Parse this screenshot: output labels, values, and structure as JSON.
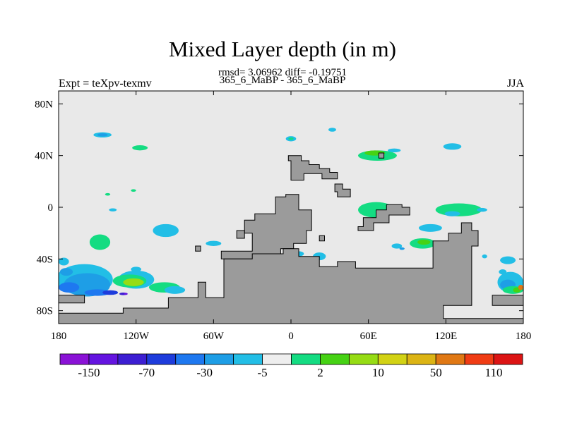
{
  "title": "Mixed Layer depth (in m)",
  "stats": "rmsd= 3.06962 diff= -0.19751",
  "subtitle": "365_6_MaBP - 365_6_MaBP",
  "left_label": "Expt = teXpv-texmv",
  "right_label": "JJA",
  "colors": {
    "ocean_background": "#e9e9e9",
    "land": "#9b9b9b",
    "palette": [
      "#8a12d6",
      "#6414e0",
      "#3c1ed2",
      "#1e3cdc",
      "#1e78f0",
      "#1e9ee6",
      "#22bee6",
      "#eeeeee",
      "#14dc82",
      "#46d214",
      "#96dc14",
      "#d2d214",
      "#dcb414",
      "#e07814",
      "#f03c14",
      "#dc1414"
    ]
  },
  "chart_data": {
    "type": "heatmap",
    "title": "Mixed Layer depth (in m)",
    "xlim": [
      -180,
      180
    ],
    "ylim": [
      -90,
      90
    ],
    "x_ticks": [
      {
        "value": -180,
        "label": "180"
      },
      {
        "value": -120,
        "label": "120W"
      },
      {
        "value": -60,
        "label": "60W"
      },
      {
        "value": 0,
        "label": "0"
      },
      {
        "value": 60,
        "label": "60E"
      },
      {
        "value": 120,
        "label": "120E"
      },
      {
        "value": 180,
        "label": "180"
      }
    ],
    "y_ticks": [
      {
        "value": 80,
        "label": "80N"
      },
      {
        "value": 40,
        "label": "40N"
      },
      {
        "value": 0,
        "label": "0"
      },
      {
        "value": -40,
        "label": "40S"
      },
      {
        "value": -80,
        "label": "80S"
      }
    ],
    "colorbar": {
      "levels": [
        -150,
        -110,
        -70,
        -50,
        -30,
        -10,
        -5,
        -2,
        2,
        5,
        10,
        30,
        50,
        70,
        110,
        150
      ],
      "labels": [
        {
          "after_box": 1,
          "text": "-150"
        },
        {
          "after_box": 3,
          "text": "-70"
        },
        {
          "after_box": 5,
          "text": "-30"
        },
        {
          "after_box": 7,
          "text": "-5"
        },
        {
          "after_box": 9,
          "text": "2"
        },
        {
          "after_box": 11,
          "text": "10"
        },
        {
          "after_box": 13,
          "text": "50"
        },
        {
          "after_box": 15,
          "text": "110"
        }
      ]
    },
    "land": [
      {
        "name": "north-land",
        "points": [
          [
            -2,
            40
          ],
          [
            8,
            40
          ],
          [
            8,
            36
          ],
          [
            14,
            36
          ],
          [
            14,
            33
          ],
          [
            22,
            33
          ],
          [
            22,
            30
          ],
          [
            30,
            30
          ],
          [
            30,
            27
          ],
          [
            36,
            27
          ],
          [
            36,
            22
          ],
          [
            24,
            22
          ],
          [
            24,
            26
          ],
          [
            10,
            26
          ],
          [
            10,
            21
          ],
          [
            0,
            21
          ],
          [
            0,
            36
          ],
          [
            -2,
            36
          ]
        ]
      },
      {
        "name": "central-land",
        "points": [
          [
            -28,
            -5
          ],
          [
            -12,
            -5
          ],
          [
            -12,
            8
          ],
          [
            -4,
            8
          ],
          [
            -4,
            10
          ],
          [
            6,
            10
          ],
          [
            6,
            -2
          ],
          [
            16,
            -2
          ],
          [
            16,
            -18
          ],
          [
            12,
            -18
          ],
          [
            12,
            -28
          ],
          [
            2,
            -28
          ],
          [
            2,
            -32
          ],
          [
            -8,
            -32
          ],
          [
            -8,
            -36
          ],
          [
            -28,
            -36
          ],
          [
            -28,
            -40
          ],
          [
            -54,
            -40
          ],
          [
            -54,
            -34
          ],
          [
            -30,
            -34
          ],
          [
            -30,
            -20
          ],
          [
            -36,
            -20
          ],
          [
            -36,
            -10
          ],
          [
            -28,
            -10
          ]
        ]
      },
      {
        "name": "southern-land",
        "points": [
          [
            -72,
            -58
          ],
          [
            -66,
            -58
          ],
          [
            -66,
            -70
          ],
          [
            -52,
            -70
          ],
          [
            -52,
            -40
          ],
          [
            -30,
            -40
          ],
          [
            -30,
            -36
          ],
          [
            -6,
            -36
          ],
          [
            -6,
            -32
          ],
          [
            6,
            -32
          ],
          [
            6,
            -38
          ],
          [
            22,
            -38
          ],
          [
            22,
            -46
          ],
          [
            36,
            -46
          ],
          [
            36,
            -42
          ],
          [
            50,
            -42
          ],
          [
            50,
            -47
          ],
          [
            110,
            -47
          ],
          [
            110,
            -26
          ],
          [
            122,
            -26
          ],
          [
            122,
            -20
          ],
          [
            132,
            -20
          ],
          [
            132,
            -12
          ],
          [
            140,
            -12
          ],
          [
            140,
            -18
          ],
          [
            145,
            -18
          ],
          [
            145,
            -30
          ],
          [
            140,
            -30
          ],
          [
            140,
            -76
          ],
          [
            118,
            -76
          ],
          [
            118,
            -86
          ],
          [
            180,
            -86
          ],
          [
            180,
            -90
          ],
          [
            -180,
            -90
          ],
          [
            -180,
            -82
          ],
          [
            -130,
            -82
          ],
          [
            -130,
            -78
          ],
          [
            -95,
            -78
          ],
          [
            -95,
            -70
          ],
          [
            -72,
            -70
          ]
        ]
      },
      {
        "name": "southern-strip-left",
        "points": [
          [
            -180,
            -68
          ],
          [
            -160,
            -68
          ],
          [
            -160,
            -74
          ],
          [
            -180,
            -74
          ]
        ]
      },
      {
        "name": "southern-strip-right",
        "points": [
          [
            156,
            -68
          ],
          [
            180,
            -68
          ],
          [
            180,
            -76
          ],
          [
            156,
            -76
          ]
        ]
      },
      {
        "name": "east-land",
        "points": [
          [
            52,
            -15
          ],
          [
            56,
            -15
          ],
          [
            56,
            -8
          ],
          [
            66,
            -8
          ],
          [
            66,
            -2
          ],
          [
            74,
            -2
          ],
          [
            74,
            2
          ],
          [
            86,
            2
          ],
          [
            86,
            0
          ],
          [
            92,
            0
          ],
          [
            92,
            -6
          ],
          [
            76,
            -6
          ],
          [
            76,
            -12
          ],
          [
            64,
            -12
          ],
          [
            64,
            -18
          ],
          [
            52,
            -18
          ]
        ]
      },
      {
        "name": "mideast-land",
        "points": [
          [
            34,
            18
          ],
          [
            40,
            18
          ],
          [
            40,
            14
          ],
          [
            46,
            14
          ],
          [
            46,
            8
          ],
          [
            36,
            8
          ],
          [
            36,
            12
          ],
          [
            34,
            12
          ]
        ]
      },
      {
        "name": "island-a",
        "points": [
          [
            -42,
            -18
          ],
          [
            -36,
            -18
          ],
          [
            -36,
            -24
          ],
          [
            -42,
            -24
          ]
        ]
      },
      {
        "name": "island-b",
        "points": [
          [
            -74,
            -30
          ],
          [
            -70,
            -30
          ],
          [
            -70,
            -34
          ],
          [
            -74,
            -34
          ]
        ]
      },
      {
        "name": "island-c",
        "points": [
          [
            22,
            -22
          ],
          [
            26,
            -22
          ],
          [
            26,
            -26
          ],
          [
            22,
            -26
          ]
        ]
      },
      {
        "name": "island-d",
        "points": [
          [
            68,
            42
          ],
          [
            72,
            42
          ],
          [
            72,
            38
          ],
          [
            68,
            38
          ]
        ]
      }
    ],
    "patches": [
      {
        "level": 6,
        "lon": -146,
        "lat": 56,
        "rx": 7,
        "ry": 2
      },
      {
        "level": 5,
        "lon": -146,
        "lat": 56,
        "rx": 4,
        "ry": 1.2
      },
      {
        "level": 8,
        "lon": -117,
        "lat": 46,
        "rx": 6,
        "ry": 2
      },
      {
        "level": 8,
        "lon": -142,
        "lat": 10,
        "rx": 2,
        "ry": 1
      },
      {
        "level": 8,
        "lon": -122,
        "lat": 13,
        "rx": 2,
        "ry": 1
      },
      {
        "level": 6,
        "lon": -138,
        "lat": -2,
        "rx": 3,
        "ry": 1.2
      },
      {
        "level": 8,
        "lon": -148,
        "lat": -27,
        "rx": 8,
        "ry": 6
      },
      {
        "level": 6,
        "lon": -97,
        "lat": -18,
        "rx": 10,
        "ry": 5
      },
      {
        "level": 6,
        "lon": -60,
        "lat": -28,
        "rx": 6,
        "ry": 2
      },
      {
        "level": 6,
        "lon": 0,
        "lat": 53,
        "rx": 4,
        "ry": 2
      },
      {
        "level": 8,
        "lon": 0,
        "lat": 53,
        "rx": 2,
        "ry": 1
      },
      {
        "level": 6,
        "lon": 32,
        "lat": 60,
        "rx": 3,
        "ry": 1.5
      },
      {
        "level": 8,
        "lon": 67,
        "lat": 40,
        "rx": 15,
        "ry": 4
      },
      {
        "level": 9,
        "lon": 65,
        "lat": 42,
        "rx": 8,
        "ry": 2
      },
      {
        "level": 6,
        "lon": 80,
        "lat": 44,
        "rx": 5,
        "ry": 1.5
      },
      {
        "level": 6,
        "lon": 125,
        "lat": 47,
        "rx": 7,
        "ry": 2.5
      },
      {
        "level": 8,
        "lon": 66,
        "lat": -2,
        "rx": 14,
        "ry": 6
      },
      {
        "level": 8,
        "lon": 130,
        "lat": -2,
        "rx": 18,
        "ry": 5
      },
      {
        "level": 6,
        "lon": 125,
        "lat": -5,
        "rx": 6,
        "ry": 2
      },
      {
        "level": 6,
        "lon": 148,
        "lat": -2,
        "rx": 4,
        "ry": 1.5
      },
      {
        "level": 6,
        "lon": 108,
        "lat": -16,
        "rx": 9,
        "ry": 3
      },
      {
        "level": 8,
        "lon": 102,
        "lat": -28,
        "rx": 10,
        "ry": 4
      },
      {
        "level": 9,
        "lon": 103,
        "lat": -27,
        "rx": 5,
        "ry": 2
      },
      {
        "level": 6,
        "lon": 82,
        "lat": -30,
        "rx": 4,
        "ry": 2
      },
      {
        "level": 5,
        "lon": 86,
        "lat": -32,
        "rx": 2,
        "ry": 1
      },
      {
        "level": 8,
        "lon": -7,
        "lat": -30,
        "rx": 2,
        "ry": 2
      },
      {
        "level": 10,
        "lon": -7,
        "lat": -30,
        "rx": 1.5,
        "ry": 1.5
      },
      {
        "level": 6,
        "lon": 22,
        "lat": -38,
        "rx": 5,
        "ry": 3
      },
      {
        "level": 6,
        "lon": 6,
        "lat": -36,
        "rx": 4,
        "ry": 2
      },
      {
        "level": 6,
        "lon": 168,
        "lat": -41,
        "rx": 6,
        "ry": 3
      },
      {
        "level": 6,
        "lon": 150,
        "lat": -38,
        "rx": 2,
        "ry": 1.5
      },
      {
        "level": 6,
        "lon": -160,
        "lat": -56,
        "rx": 22,
        "ry": 12
      },
      {
        "level": 5,
        "lon": -158,
        "lat": -60,
        "rx": 18,
        "ry": 9
      },
      {
        "level": 6,
        "lon": -120,
        "lat": -56,
        "rx": 14,
        "ry": 7
      },
      {
        "level": 8,
        "lon": -125,
        "lat": -57,
        "rx": 13,
        "ry": 5
      },
      {
        "level": 10,
        "lon": -122,
        "lat": -58,
        "rx": 8,
        "ry": 3
      },
      {
        "level": 8,
        "lon": -98,
        "lat": -62,
        "rx": 12,
        "ry": 4
      },
      {
        "level": 6,
        "lon": -90,
        "lat": -64,
        "rx": 8,
        "ry": 3
      },
      {
        "level": 4,
        "lon": -172,
        "lat": -62,
        "rx": 8,
        "ry": 4
      },
      {
        "level": 4,
        "lon": -150,
        "lat": -66,
        "rx": 10,
        "ry": 2.5
      },
      {
        "level": 3,
        "lon": -140,
        "lat": -66,
        "rx": 6,
        "ry": 1.8
      },
      {
        "level": 2,
        "lon": -130,
        "lat": -67,
        "rx": 3,
        "ry": 1
      },
      {
        "level": 1,
        "lon": -128,
        "lat": -67,
        "rx": 1.5,
        "ry": 0.8
      },
      {
        "level": 6,
        "lon": -120,
        "lat": -48,
        "rx": 4,
        "ry": 2
      },
      {
        "level": 6,
        "lon": -176,
        "lat": -42,
        "rx": 4,
        "ry": 3
      },
      {
        "level": 5,
        "lon": -174,
        "lat": -50,
        "rx": 5,
        "ry": 3
      },
      {
        "level": 6,
        "lon": 170,
        "lat": -58,
        "rx": 10,
        "ry": 8
      },
      {
        "level": 5,
        "lon": 168,
        "lat": -60,
        "rx": 6,
        "ry": 4
      },
      {
        "level": 8,
        "lon": 172,
        "lat": -64,
        "rx": 8,
        "ry": 3
      },
      {
        "level": 9,
        "lon": 175,
        "lat": -64,
        "rx": 3,
        "ry": 2
      },
      {
        "level": 13,
        "lon": 178,
        "lat": -62,
        "rx": 2,
        "ry": 2
      },
      {
        "level": 6,
        "lon": 164,
        "lat": -50,
        "rx": 3,
        "ry": 2
      }
    ]
  }
}
